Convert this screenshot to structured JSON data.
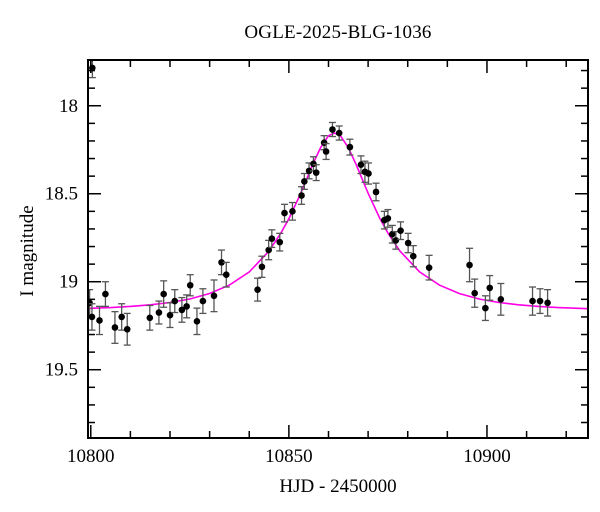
{
  "figure": {
    "title": "OGLE-2025-BLG-1036",
    "xlabel": "HJD - 2450000",
    "ylabel": "I magnitude"
  },
  "chart_data": {
    "type": "scatter",
    "title": "OGLE-2025-BLG-1036",
    "xlabel": "HJD - 2450000",
    "ylabel": "I magnitude",
    "grid": false,
    "legend": false,
    "x_axis": {
      "min": 10799.3,
      "max": 10925.5,
      "major_ticks": [
        10800,
        10850,
        10900
      ],
      "tick_labels": [
        "10800",
        "10850",
        "10900"
      ],
      "minor_tick_step": 10
    },
    "y_axis": {
      "min": 17.74,
      "max": 19.888,
      "inverted_magnitude_axis": true,
      "major_ticks": [
        18,
        18.5,
        19,
        19.5
      ],
      "tick_labels": [
        "18",
        "18.5",
        "19",
        "19.5"
      ],
      "minor_tick_step": 0.1
    },
    "series": [
      {
        "name": "ogle-photometry",
        "type": "scatter",
        "marker": "filled-circle",
        "color": "#000000",
        "error_color": "#555555",
        "points_format": [
          "hjd_minus_2450000",
          "i_magnitude",
          "error"
        ],
        "points": [
          [
            10800.4,
            17.785,
            0.055
          ],
          [
            10799.7,
            19.12,
            0.075
          ],
          [
            10800.3,
            19.2,
            0.075
          ],
          [
            10802.2,
            19.22,
            0.08
          ],
          [
            10803.7,
            19.07,
            0.07
          ],
          [
            10806.1,
            19.26,
            0.09
          ],
          [
            10807.8,
            19.2,
            0.075
          ],
          [
            10809.2,
            19.27,
            0.09
          ],
          [
            10814.9,
            19.205,
            0.07
          ],
          [
            10817.2,
            19.175,
            0.065
          ],
          [
            10818.4,
            19.07,
            0.075
          ],
          [
            10820.0,
            19.19,
            0.07
          ],
          [
            10821.2,
            19.11,
            0.065
          ],
          [
            10823.0,
            19.16,
            0.07
          ],
          [
            10824.2,
            19.14,
            0.065
          ],
          [
            10825.1,
            19.02,
            0.06
          ],
          [
            10826.8,
            19.225,
            0.075
          ],
          [
            10828.3,
            19.11,
            0.07
          ],
          [
            10831.1,
            19.08,
            0.09
          ],
          [
            10833.0,
            18.89,
            0.07
          ],
          [
            10834.2,
            18.96,
            0.07
          ],
          [
            10842.1,
            19.045,
            0.065
          ],
          [
            10843.2,
            18.915,
            0.06
          ],
          [
            10844.9,
            18.82,
            0.055
          ],
          [
            10845.7,
            18.755,
            0.05
          ],
          [
            10847.7,
            18.775,
            0.05
          ],
          [
            10848.9,
            18.61,
            0.05
          ],
          [
            10850.9,
            18.6,
            0.05
          ],
          [
            10853.2,
            18.51,
            0.05
          ],
          [
            10853.9,
            18.43,
            0.045
          ],
          [
            10855.1,
            18.37,
            0.045
          ],
          [
            10856.2,
            18.33,
            0.04
          ],
          [
            10856.9,
            18.38,
            0.045
          ],
          [
            10858.9,
            18.21,
            0.04
          ],
          [
            10859.4,
            18.26,
            0.045
          ],
          [
            10861.0,
            18.135,
            0.04
          ],
          [
            10862.7,
            18.155,
            0.04
          ],
          [
            10865.4,
            18.235,
            0.045
          ],
          [
            10868.2,
            18.335,
            0.05
          ],
          [
            10869.2,
            18.375,
            0.06
          ],
          [
            10870.1,
            18.385,
            0.06
          ],
          [
            10872.0,
            18.49,
            0.05
          ],
          [
            10874.1,
            18.65,
            0.05
          ],
          [
            10875.0,
            18.64,
            0.05
          ],
          [
            10876.1,
            18.73,
            0.05
          ],
          [
            10877.0,
            18.765,
            0.05
          ],
          [
            10878.2,
            18.71,
            0.05
          ],
          [
            10880.1,
            18.78,
            0.055
          ],
          [
            10881.4,
            18.855,
            0.06
          ],
          [
            10885.4,
            18.92,
            0.07
          ],
          [
            10895.6,
            18.905,
            0.095
          ],
          [
            10896.9,
            19.065,
            0.08
          ],
          [
            10899.6,
            19.15,
            0.07
          ],
          [
            10900.7,
            19.035,
            0.07
          ],
          [
            10903.5,
            19.1,
            0.09
          ],
          [
            10911.5,
            19.11,
            0.08
          ],
          [
            10913.4,
            19.11,
            0.07
          ],
          [
            10915.3,
            19.12,
            0.075
          ]
        ]
      },
      {
        "name": "microlensing-model",
        "type": "line",
        "color": "#ff00e6",
        "points_format": [
          "hjd_minus_2450000",
          "i_magnitude"
        ],
        "points": [
          [
            10799,
            19.152
          ],
          [
            10805,
            19.147
          ],
          [
            10810,
            19.14
          ],
          [
            10815,
            19.131
          ],
          [
            10820,
            19.118
          ],
          [
            10825,
            19.098
          ],
          [
            10830,
            19.067
          ],
          [
            10835,
            19.019
          ],
          [
            10840,
            18.944
          ],
          [
            10845,
            18.825
          ],
          [
            10848,
            18.723
          ],
          [
            10850,
            18.642
          ],
          [
            10853,
            18.497
          ],
          [
            10856,
            18.335
          ],
          [
            10858,
            18.238
          ],
          [
            10860,
            18.17
          ],
          [
            10861.5,
            18.155
          ],
          [
            10863,
            18.17
          ],
          [
            10865,
            18.238
          ],
          [
            10867,
            18.335
          ],
          [
            10870,
            18.497
          ],
          [
            10873,
            18.642
          ],
          [
            10875,
            18.723
          ],
          [
            10878,
            18.825
          ],
          [
            10883,
            18.944
          ],
          [
            10888,
            19.019
          ],
          [
            10893,
            19.067
          ],
          [
            10898,
            19.098
          ],
          [
            10903,
            19.118
          ],
          [
            10908,
            19.131
          ],
          [
            10913,
            19.14
          ],
          [
            10918,
            19.147
          ],
          [
            10926,
            19.154
          ]
        ]
      }
    ]
  },
  "colors": {
    "background": "#ffffff",
    "frame": "#000000",
    "data_points": "#000000",
    "error_bars": "#555555",
    "model_curve": "#ff00e6"
  }
}
